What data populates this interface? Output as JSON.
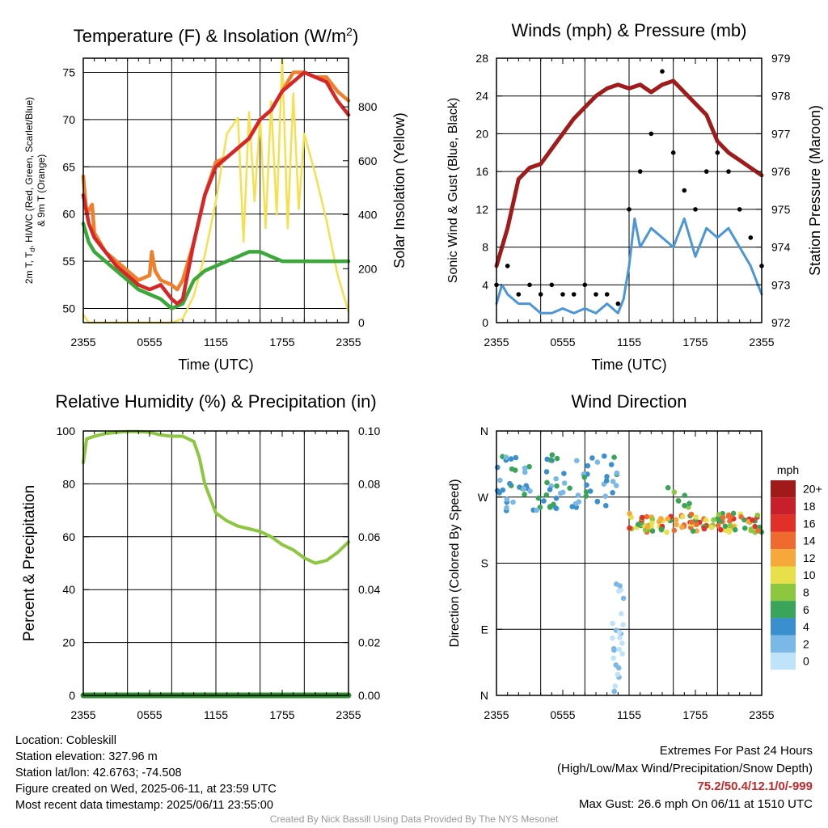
{
  "chart_data": [
    {
      "type": "line",
      "title": "Temperature (F) & Insolation (W/m²)",
      "xlabel": "Time (UTC)",
      "ylabel": "2m T, Tₔ, HI/WC (Red, Green, Scarlet/Blue) & 9m T (Orange)",
      "ylabel_line1": "2m T, T",
      "ylabel_sub": "d",
      "ylabel_line1b": ", HI/WC (Red, Green, Scarlet/Blue)",
      "ylabel_line2": "& 9m T (Orange)",
      "y2label": "Solar Insolation (Yellow)",
      "x_ticks": [
        "2355",
        "0555",
        "1155",
        "1755",
        "2355"
      ],
      "ylim": [
        48.5,
        76.5
      ],
      "y_ticks": [
        50,
        55,
        60,
        65,
        70,
        75
      ],
      "y2lim": [
        0,
        980
      ],
      "y2_ticks": [
        0,
        200,
        400,
        600,
        800
      ],
      "series": [
        {
          "color": "#f07f2b",
          "values": [
            [
              0,
              64
            ],
            [
              0.3,
              60
            ],
            [
              0.8,
              61
            ],
            [
              1,
              58
            ],
            [
              1.5,
              57
            ],
            [
              2,
              56
            ],
            [
              3,
              55
            ],
            [
              4,
              54
            ],
            [
              5,
              53
            ],
            [
              6,
              53.5
            ],
            [
              6.2,
              56
            ],
            [
              6.5,
              54
            ],
            [
              7,
              53
            ],
            [
              8,
              52.5
            ],
            [
              8.5,
              52
            ],
            [
              9,
              53
            ],
            [
              10,
              57
            ],
            [
              11,
              62
            ],
            [
              12,
              65.5
            ],
            [
              13,
              66
            ],
            [
              14,
              67
            ],
            [
              15,
              68
            ],
            [
              16,
              70
            ],
            [
              17,
              71
            ],
            [
              18,
              73
            ],
            [
              19,
              75
            ],
            [
              20,
              75
            ],
            [
              21,
              74.5
            ],
            [
              22,
              74.5
            ],
            [
              23,
              73
            ],
            [
              24,
              72
            ]
          ]
        },
        {
          "color": "#d62728",
          "values": [
            [
              0,
              62
            ],
            [
              0.5,
              59
            ],
            [
              1,
              57.5
            ],
            [
              2,
              56
            ],
            [
              3,
              54.5
            ],
            [
              4,
              53.5
            ],
            [
              5,
              52.5
            ],
            [
              6,
              52
            ],
            [
              7,
              52.5
            ],
            [
              8,
              51
            ],
            [
              8.5,
              50.5
            ],
            [
              9,
              51
            ],
            [
              10,
              57
            ],
            [
              11,
              62
            ],
            [
              12,
              65
            ],
            [
              13,
              66
            ],
            [
              14,
              67
            ],
            [
              15,
              68
            ],
            [
              16,
              70
            ],
            [
              17,
              71
            ],
            [
              18,
              73
            ],
            [
              19,
              74
            ],
            [
              20,
              75
            ],
            [
              21,
              74.5
            ],
            [
              22,
              74
            ],
            [
              23,
              72
            ],
            [
              24,
              70.5
            ]
          ]
        },
        {
          "color": "#3aa93a",
          "values": [
            [
              0,
              59
            ],
            [
              0.5,
              57
            ],
            [
              1,
              56
            ],
            [
              2,
              55
            ],
            [
              3,
              54
            ],
            [
              4,
              53
            ],
            [
              5,
              52
            ],
            [
              6,
              51.5
            ],
            [
              7,
              51
            ],
            [
              8,
              50
            ],
            [
              9,
              50.5
            ],
            [
              10,
              53
            ],
            [
              11,
              54
            ],
            [
              12,
              54.5
            ],
            [
              13,
              55
            ],
            [
              14,
              55.5
            ],
            [
              15,
              56
            ],
            [
              16,
              56
            ],
            [
              17,
              55.5
            ],
            [
              18,
              55
            ],
            [
              19,
              55
            ],
            [
              20,
              55
            ],
            [
              21,
              55
            ],
            [
              22,
              55
            ],
            [
              23,
              55
            ],
            [
              24,
              55
            ]
          ]
        },
        {
          "color": "#f5e050",
          "axis": "y2",
          "values": [
            [
              0,
              30
            ],
            [
              0.5,
              0
            ],
            [
              8,
              0
            ],
            [
              9,
              15
            ],
            [
              10,
              100
            ],
            [
              11,
              250
            ],
            [
              12,
              450
            ],
            [
              13,
              700
            ],
            [
              14,
              760
            ],
            [
              14.5,
              300
            ],
            [
              15,
              780
            ],
            [
              15.5,
              450
            ],
            [
              16,
              760
            ],
            [
              16.5,
              350
            ],
            [
              17,
              820
            ],
            [
              17.5,
              400
            ],
            [
              18,
              980
            ],
            [
              18.5,
              350
            ],
            [
              19,
              850
            ],
            [
              19.5,
              420
            ],
            [
              20,
              700
            ],
            [
              21,
              550
            ],
            [
              22,
              380
            ],
            [
              23,
              180
            ],
            [
              24,
              40
            ]
          ]
        }
      ]
    },
    {
      "type": "line",
      "title": "Winds (mph) & Pressure (mb)",
      "xlabel": "Time (UTC)",
      "ylabel": "Sonic Wind & Gust (Blue, Black)",
      "y2label": "Station Pressure (Maroon)",
      "x_ticks": [
        "2355",
        "0555",
        "1155",
        "1755",
        "2355"
      ],
      "ylim": [
        0,
        28
      ],
      "y_ticks": [
        0,
        4,
        8,
        12,
        16,
        20,
        24,
        28
      ],
      "y2lim": [
        972,
        979
      ],
      "y2_ticks": [
        972,
        973,
        974,
        975,
        976,
        977,
        978,
        979
      ],
      "series": [
        {
          "color": "#a01c1c",
          "axis": "y2",
          "values": [
            [
              0,
              973.5
            ],
            [
              1,
              974.5
            ],
            [
              2,
              975.8
            ],
            [
              3,
              976.1
            ],
            [
              4,
              976.2
            ],
            [
              5,
              976.6
            ],
            [
              6,
              977
            ],
            [
              7,
              977.4
            ],
            [
              8,
              977.7
            ],
            [
              9,
              978
            ],
            [
              10,
              978.2
            ],
            [
              11,
              978.3
            ],
            [
              12,
              978.2
            ],
            [
              13,
              978.3
            ],
            [
              14,
              978.1
            ],
            [
              15,
              978.3
            ],
            [
              16,
              978.4
            ],
            [
              17,
              978.1
            ],
            [
              18,
              977.8
            ],
            [
              19,
              977.5
            ],
            [
              20,
              976.8
            ],
            [
              21,
              976.5
            ],
            [
              22,
              976.3
            ],
            [
              23,
              976.1
            ],
            [
              24,
              975.9
            ]
          ]
        },
        {
          "color": "#4a96d6",
          "values": [
            [
              0,
              2
            ],
            [
              0.5,
              4
            ],
            [
              1,
              3
            ],
            [
              2,
              2
            ],
            [
              3,
              2
            ],
            [
              4,
              1
            ],
            [
              5,
              1
            ],
            [
              6,
              1.5
            ],
            [
              7,
              1
            ],
            [
              8,
              1.5
            ],
            [
              9,
              1
            ],
            [
              10,
              2
            ],
            [
              11,
              1
            ],
            [
              11.5,
              2.5
            ],
            [
              12,
              6
            ],
            [
              12.5,
              11
            ],
            [
              13,
              8
            ],
            [
              14,
              10
            ],
            [
              15,
              9
            ],
            [
              16,
              8
            ],
            [
              17,
              11
            ],
            [
              18,
              7
            ],
            [
              19,
              10
            ],
            [
              20,
              9
            ],
            [
              21,
              10
            ],
            [
              22,
              8
            ],
            [
              23,
              6
            ],
            [
              24,
              3
            ]
          ]
        },
        {
          "color": "#000000",
          "values": [
            [
              0,
              4
            ],
            [
              1,
              6
            ],
            [
              2,
              3
            ],
            [
              3,
              4
            ],
            [
              4,
              3
            ],
            [
              5,
              4
            ],
            [
              6,
              3
            ],
            [
              7,
              3
            ],
            [
              8,
              4
            ],
            [
              9,
              3
            ],
            [
              10,
              3
            ],
            [
              11,
              2
            ],
            [
              12,
              12
            ],
            [
              13,
              16
            ],
            [
              14,
              20
            ],
            [
              15,
              26.6
            ],
            [
              16,
              18
            ],
            [
              17,
              14
            ],
            [
              18,
              12
            ],
            [
              19,
              16
            ],
            [
              20,
              18
            ],
            [
              21,
              16
            ],
            [
              22,
              12
            ],
            [
              23,
              9
            ],
            [
              24,
              6
            ]
          ]
        }
      ]
    },
    {
      "type": "line",
      "title": "Relative Humidity (%) & Precipitation (in)",
      "xlabel": "",
      "ylabel": "Percent & Precipitation",
      "x_ticks": [
        "2355",
        "0555",
        "1155",
        "1755",
        "2355"
      ],
      "ylim": [
        0,
        100
      ],
      "y_ticks": [
        0,
        20,
        40,
        60,
        80,
        100
      ],
      "y2lim": [
        0,
        0.1
      ],
      "y2_ticks": [
        "0.00",
        "0.02",
        "0.04",
        "0.06",
        "0.08",
        "0.10"
      ],
      "series": [
        {
          "color": "#8dc63f",
          "values": [
            [
              0,
              88
            ],
            [
              0.3,
              97
            ],
            [
              1,
              98
            ],
            [
              2,
              99
            ],
            [
              3,
              99.5
            ],
            [
              4,
              99.8
            ],
            [
              5,
              99.8
            ],
            [
              6,
              99.5
            ],
            [
              7,
              98.5
            ],
            [
              8,
              98
            ],
            [
              9,
              98
            ],
            [
              10,
              96
            ],
            [
              10.5,
              90
            ],
            [
              11,
              80
            ],
            [
              12,
              69
            ],
            [
              13,
              66
            ],
            [
              14,
              64
            ],
            [
              15,
              63
            ],
            [
              16,
              62
            ],
            [
              17,
              60
            ],
            [
              18,
              57
            ],
            [
              19,
              55
            ],
            [
              20,
              52
            ],
            [
              21,
              50
            ],
            [
              22,
              51
            ],
            [
              23,
              54
            ],
            [
              24,
              58
            ]
          ]
        },
        {
          "color": "#2f8f2f",
          "values": [
            [
              0,
              0
            ],
            [
              24,
              0
            ]
          ]
        }
      ]
    },
    {
      "type": "scatter",
      "title": "Wind Direction",
      "xlabel": "",
      "ylabel": "Direction (Colored By Speed)",
      "x_ticks": [
        "2355",
        "0555",
        "1155",
        "1755",
        "2355"
      ],
      "y_ticks": [
        "N",
        "E",
        "S",
        "W",
        "N"
      ],
      "ylim": [
        0,
        360
      ],
      "colorbar_unit": "mph",
      "colorbar_labels": [
        "20+",
        "18",
        "16",
        "14",
        "12",
        "10",
        "8",
        "6",
        "4",
        "2",
        "0"
      ],
      "colorbar_colors": [
        "#a11a1a",
        "#c8202a",
        "#e03028",
        "#ef6a2e",
        "#f7a83a",
        "#e8e04a",
        "#8dc63f",
        "#3aa55a",
        "#3a8fcf",
        "#7ab8e8",
        "#bfe3f8"
      ]
    }
  ],
  "footer": {
    "location": "Location: Cobleskill",
    "elevation": "Station elevation: 327.96 m",
    "latlon": "Station lat/lon: 42.6763; -74.508",
    "created": "Figure created on Wed, 2025-06-11, at 23:59 UTC",
    "recent": "Most recent data timestamp: 2025/06/11 23:55:00",
    "extremes_title": "Extremes For Past 24 Hours",
    "extremes_desc": "(High/Low/Max Wind/Precipitation/Snow Depth)",
    "extremes_values": "75.2/50.4/12.1/0/-999",
    "max_gust": "Max Gust: 26.6 mph On 06/11 at 1510 UTC",
    "credit": "Created By Nick Bassill Using Data Provided By The NYS Mesonet"
  }
}
